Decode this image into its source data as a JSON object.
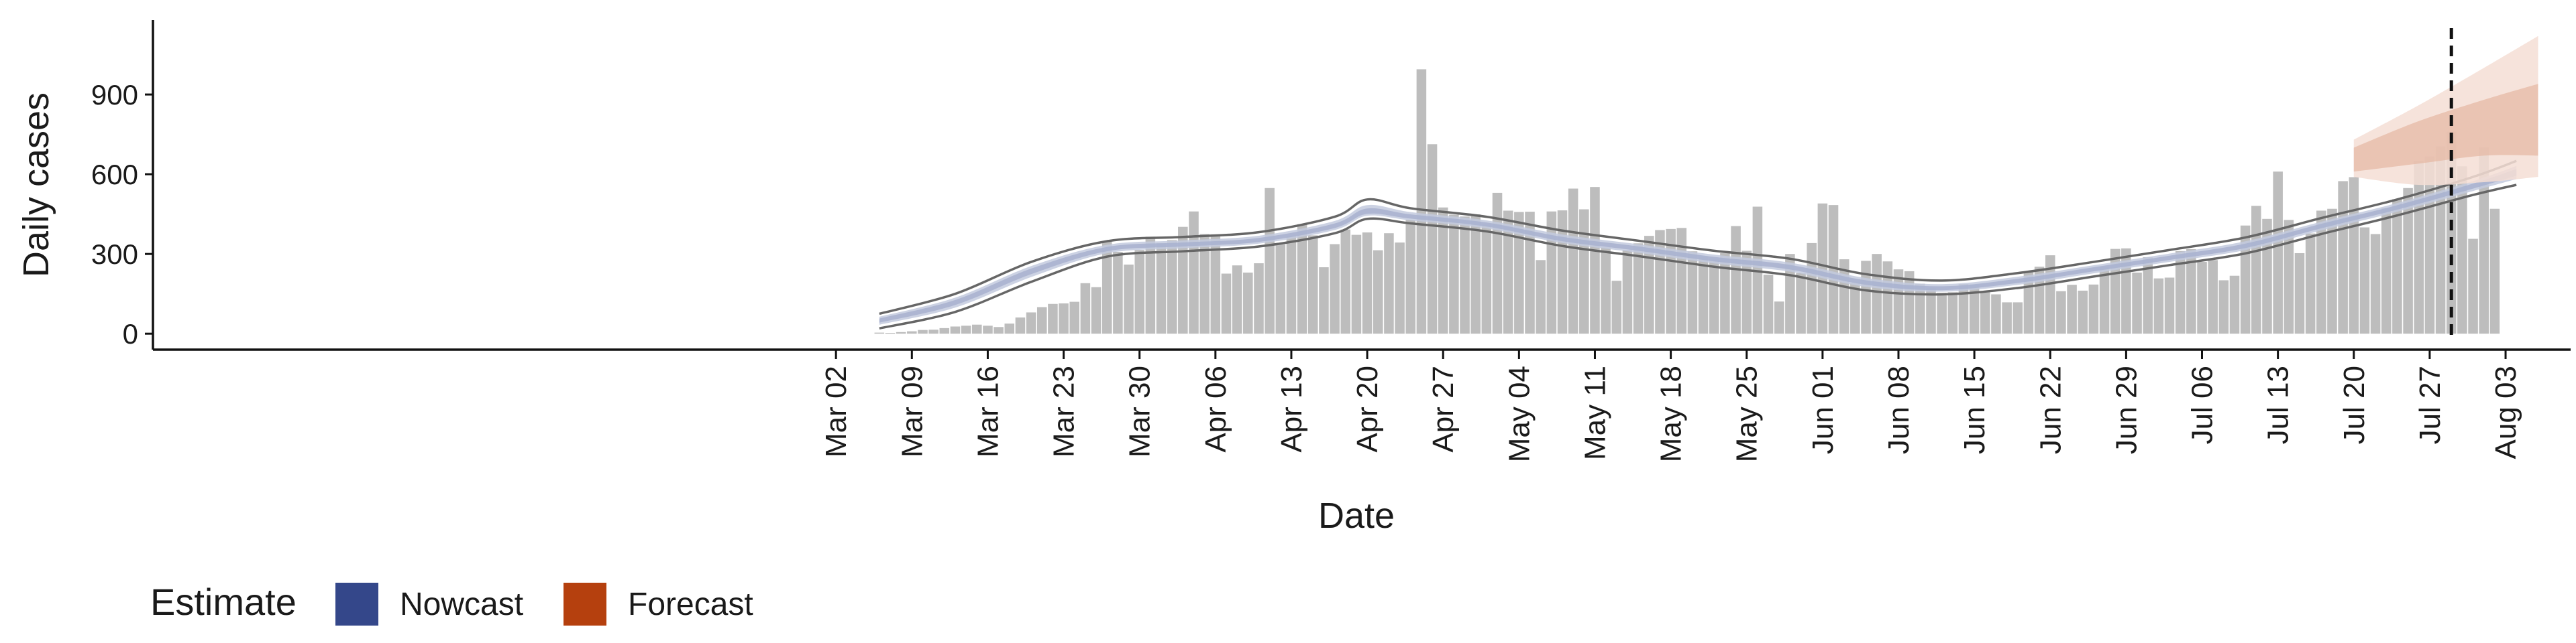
{
  "chart_data": {
    "type": "bar",
    "xlabel": "Date",
    "ylabel": "Daily cases",
    "ylim": [
      -60,
      1180
    ],
    "y_ticks": [
      0,
      300,
      600,
      900
    ],
    "x_ticks": [
      {
        "label": "Mar 02",
        "date": "2020-03-02"
      },
      {
        "label": "Mar 09",
        "date": "2020-03-09"
      },
      {
        "label": "Mar 16",
        "date": "2020-03-16"
      },
      {
        "label": "Mar 23",
        "date": "2020-03-23"
      },
      {
        "label": "Mar 30",
        "date": "2020-03-30"
      },
      {
        "label": "Apr 06",
        "date": "2020-04-06"
      },
      {
        "label": "Apr 13",
        "date": "2020-04-13"
      },
      {
        "label": "Apr 20",
        "date": "2020-04-20"
      },
      {
        "label": "Apr 27",
        "date": "2020-04-27"
      },
      {
        "label": "May 04",
        "date": "2020-05-04"
      },
      {
        "label": "May 11",
        "date": "2020-05-11"
      },
      {
        "label": "May 18",
        "date": "2020-05-18"
      },
      {
        "label": "May 25",
        "date": "2020-05-25"
      },
      {
        "label": "Jun 01",
        "date": "2020-06-01"
      },
      {
        "label": "Jun 08",
        "date": "2020-06-08"
      },
      {
        "label": "Jun 15",
        "date": "2020-06-15"
      },
      {
        "label": "Jun 22",
        "date": "2020-06-22"
      },
      {
        "label": "Jun 29",
        "date": "2020-06-29"
      },
      {
        "label": "Jul 06",
        "date": "2020-07-06"
      },
      {
        "label": "Jul 13",
        "date": "2020-07-13"
      },
      {
        "label": "Jul 20",
        "date": "2020-07-20"
      },
      {
        "label": "Jul 27",
        "date": "2020-07-27"
      },
      {
        "label": "Aug 03",
        "date": "2020-08-03"
      }
    ],
    "xlim": [
      "2019-12-30",
      "2020-08-09"
    ],
    "reported_cases": {
      "start_date": "2020-03-06",
      "values": [
        4,
        3,
        6,
        9,
        14,
        15,
        21,
        27,
        30,
        34,
        30,
        25,
        38,
        61,
        80,
        100,
        112,
        114,
        120,
        190,
        175,
        346,
        308,
        260,
        315,
        365,
        341,
        352,
        402,
        460,
        375,
        374,
        226,
        257,
        230,
        265,
        548,
        336,
        369,
        412,
        370,
        250,
        337,
        392,
        372,
        381,
        314,
        378,
        343,
        428,
        995,
        713,
        475,
        448,
        441,
        449,
        411,
        530,
        463,
        458,
        459,
        277,
        460,
        464,
        546,
        468,
        552,
        325,
        199,
        315,
        340,
        368,
        390,
        394,
        398,
        310,
        292,
        284,
        303,
        405,
        312,
        478,
        222,
        121,
        300,
        228,
        341,
        490,
        484,
        280,
        192,
        274,
        300,
        272,
        242,
        235,
        188,
        172,
        154,
        156,
        187,
        185,
        158,
        148,
        118,
        118,
        232,
        252,
        295,
        160,
        184,
        162,
        185,
        250,
        319,
        321,
        230,
        288,
        208,
        211,
        311,
        318,
        270,
        277,
        201,
        218,
        407,
        481,
        432,
        610,
        428,
        303,
        377,
        463,
        470,
        574,
        589,
        400,
        375,
        473,
        506,
        548,
        651,
        667,
        705,
        760,
        630,
        357,
        702,
        470
      ]
    },
    "nowcast": {
      "start_date": "2020-03-06",
      "points": [
        {
          "offset": 0,
          "median": 50,
          "low": 20,
          "high": 75
        },
        {
          "offset": 7,
          "median": 118,
          "low": 82,
          "high": 150
        },
        {
          "offset": 14,
          "median": 235,
          "low": 195,
          "high": 270
        },
        {
          "offset": 21,
          "median": 318,
          "low": 290,
          "high": 348
        },
        {
          "offset": 28,
          "median": 335,
          "low": 310,
          "high": 364
        },
        {
          "offset": 35,
          "median": 352,
          "low": 328,
          "high": 382
        },
        {
          "offset": 42,
          "median": 405,
          "low": 378,
          "high": 440
        },
        {
          "offset": 45,
          "median": 458,
          "low": 432,
          "high": 505
        },
        {
          "offset": 49,
          "median": 440,
          "low": 415,
          "high": 472
        },
        {
          "offset": 56,
          "median": 410,
          "low": 385,
          "high": 440
        },
        {
          "offset": 63,
          "median": 355,
          "low": 330,
          "high": 388
        },
        {
          "offset": 70,
          "median": 320,
          "low": 292,
          "high": 350
        },
        {
          "offset": 77,
          "median": 280,
          "low": 252,
          "high": 312
        },
        {
          "offset": 84,
          "median": 250,
          "low": 220,
          "high": 282
        },
        {
          "offset": 91,
          "median": 192,
          "low": 163,
          "high": 224
        },
        {
          "offset": 98,
          "median": 170,
          "low": 148,
          "high": 200
        },
        {
          "offset": 105,
          "median": 198,
          "low": 172,
          "high": 228
        },
        {
          "offset": 112,
          "median": 242,
          "low": 215,
          "high": 270
        },
        {
          "offset": 119,
          "median": 285,
          "low": 258,
          "high": 315
        },
        {
          "offset": 126,
          "median": 330,
          "low": 302,
          "high": 362
        },
        {
          "offset": 133,
          "median": 405,
          "low": 375,
          "high": 435
        },
        {
          "offset": 140,
          "median": 475,
          "low": 445,
          "high": 505
        },
        {
          "offset": 147,
          "median": 555,
          "low": 522,
          "high": 590
        },
        {
          "offset": 151,
          "median": 608,
          "low": 560,
          "high": 650
        }
      ]
    },
    "forecast": {
      "start_date": "2020-07-20",
      "points": [
        {
          "offset": 0,
          "median": 660,
          "low50": 610,
          "high50": 700,
          "low90": 590,
          "high90": 730
        },
        {
          "offset": 6,
          "median": 720,
          "low50": 640,
          "high50": 800,
          "low90": 560,
          "high90": 860
        },
        {
          "offset": 12,
          "median": 790,
          "low50": 670,
          "high50": 880,
          "low90": 570,
          "high90": 1000
        },
        {
          "offset": 17,
          "median": 800,
          "low50": 670,
          "high50": 940,
          "low90": 590,
          "high90": 1120
        }
      ]
    },
    "vline_date": "2020-07-29",
    "legend": {
      "title": "Estimate",
      "position": "bottom-left",
      "items": [
        {
          "label": "Nowcast",
          "color": "#34478a"
        },
        {
          "label": "Forecast",
          "color": "#b5400e"
        }
      ]
    },
    "colors": {
      "bar": "#bdbdbd",
      "nowcast_band_outer": "#c3cade",
      "nowcast_band_inner": "#a8b2cf",
      "nowcast_bound_line": "#666666",
      "forecast_band_outer": "#f4ded5",
      "forecast_band_inner": "#e6b6a2",
      "vline": "#111111",
      "axis": "#111111"
    }
  }
}
